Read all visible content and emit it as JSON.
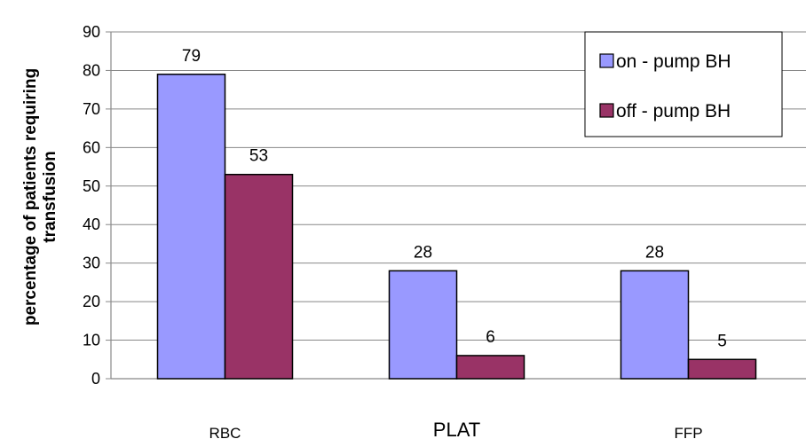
{
  "chart_data": {
    "type": "bar",
    "categories": [
      "RBC",
      "PLAT",
      "FFP"
    ],
    "series": [
      {
        "name": "on - pump BH",
        "values": [
          79,
          28,
          28
        ],
        "color": "#9999ff"
      },
      {
        "name": "off -  pump BH",
        "values": [
          53,
          6,
          5
        ],
        "color": "#993366"
      }
    ],
    "ylabel_line1": "percentage of patients requiring",
    "ylabel_line2": "transfusion",
    "ylim": [
      0,
      90
    ],
    "yticks": [
      0,
      10,
      20,
      30,
      40,
      50,
      60,
      70,
      80,
      90
    ],
    "grid": true,
    "legend_position": "top-right",
    "data_labels": true
  }
}
